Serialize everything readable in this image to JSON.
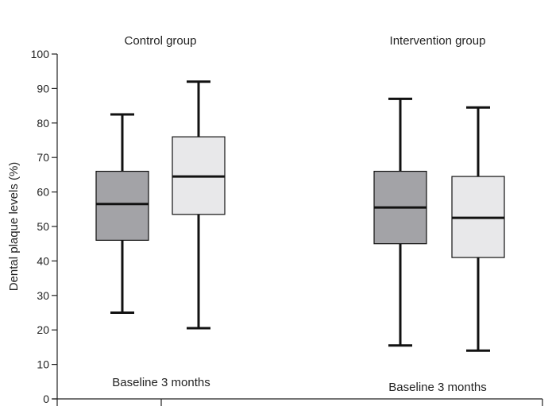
{
  "chart_data": {
    "type": "boxplot",
    "ylabel": "Dental plaque levels (%)",
    "ylim": [
      0,
      100
    ],
    "yticks": [
      0,
      10,
      20,
      30,
      40,
      50,
      60,
      70,
      80,
      90,
      100
    ],
    "groups": [
      {
        "title": "Control group",
        "note": "Baseline 3 months",
        "boxes": [
          {
            "name": "Baseline",
            "min": 25,
            "q1": 46,
            "median": 56.5,
            "q3": 66,
            "max": 82.5,
            "color": "#a3a3a7"
          },
          {
            "name": "3 months",
            "min": 20.5,
            "q1": 53.5,
            "median": 64.5,
            "q3": 76,
            "max": 92,
            "color": "#e8e8ea"
          }
        ]
      },
      {
        "title": "Intervention group",
        "note": "Baseline 3 months",
        "boxes": [
          {
            "name": "Baseline",
            "min": 15.5,
            "q1": 45,
            "median": 55.5,
            "q3": 66,
            "max": 87,
            "color": "#a3a3a7"
          },
          {
            "name": "3 months",
            "min": 14,
            "q1": 41,
            "median": 52.5,
            "q3": 64.5,
            "max": 84.5,
            "color": "#e8e8ea"
          }
        ]
      }
    ],
    "colors": {
      "axis": "#222222",
      "stroke": "#111111"
    }
  }
}
